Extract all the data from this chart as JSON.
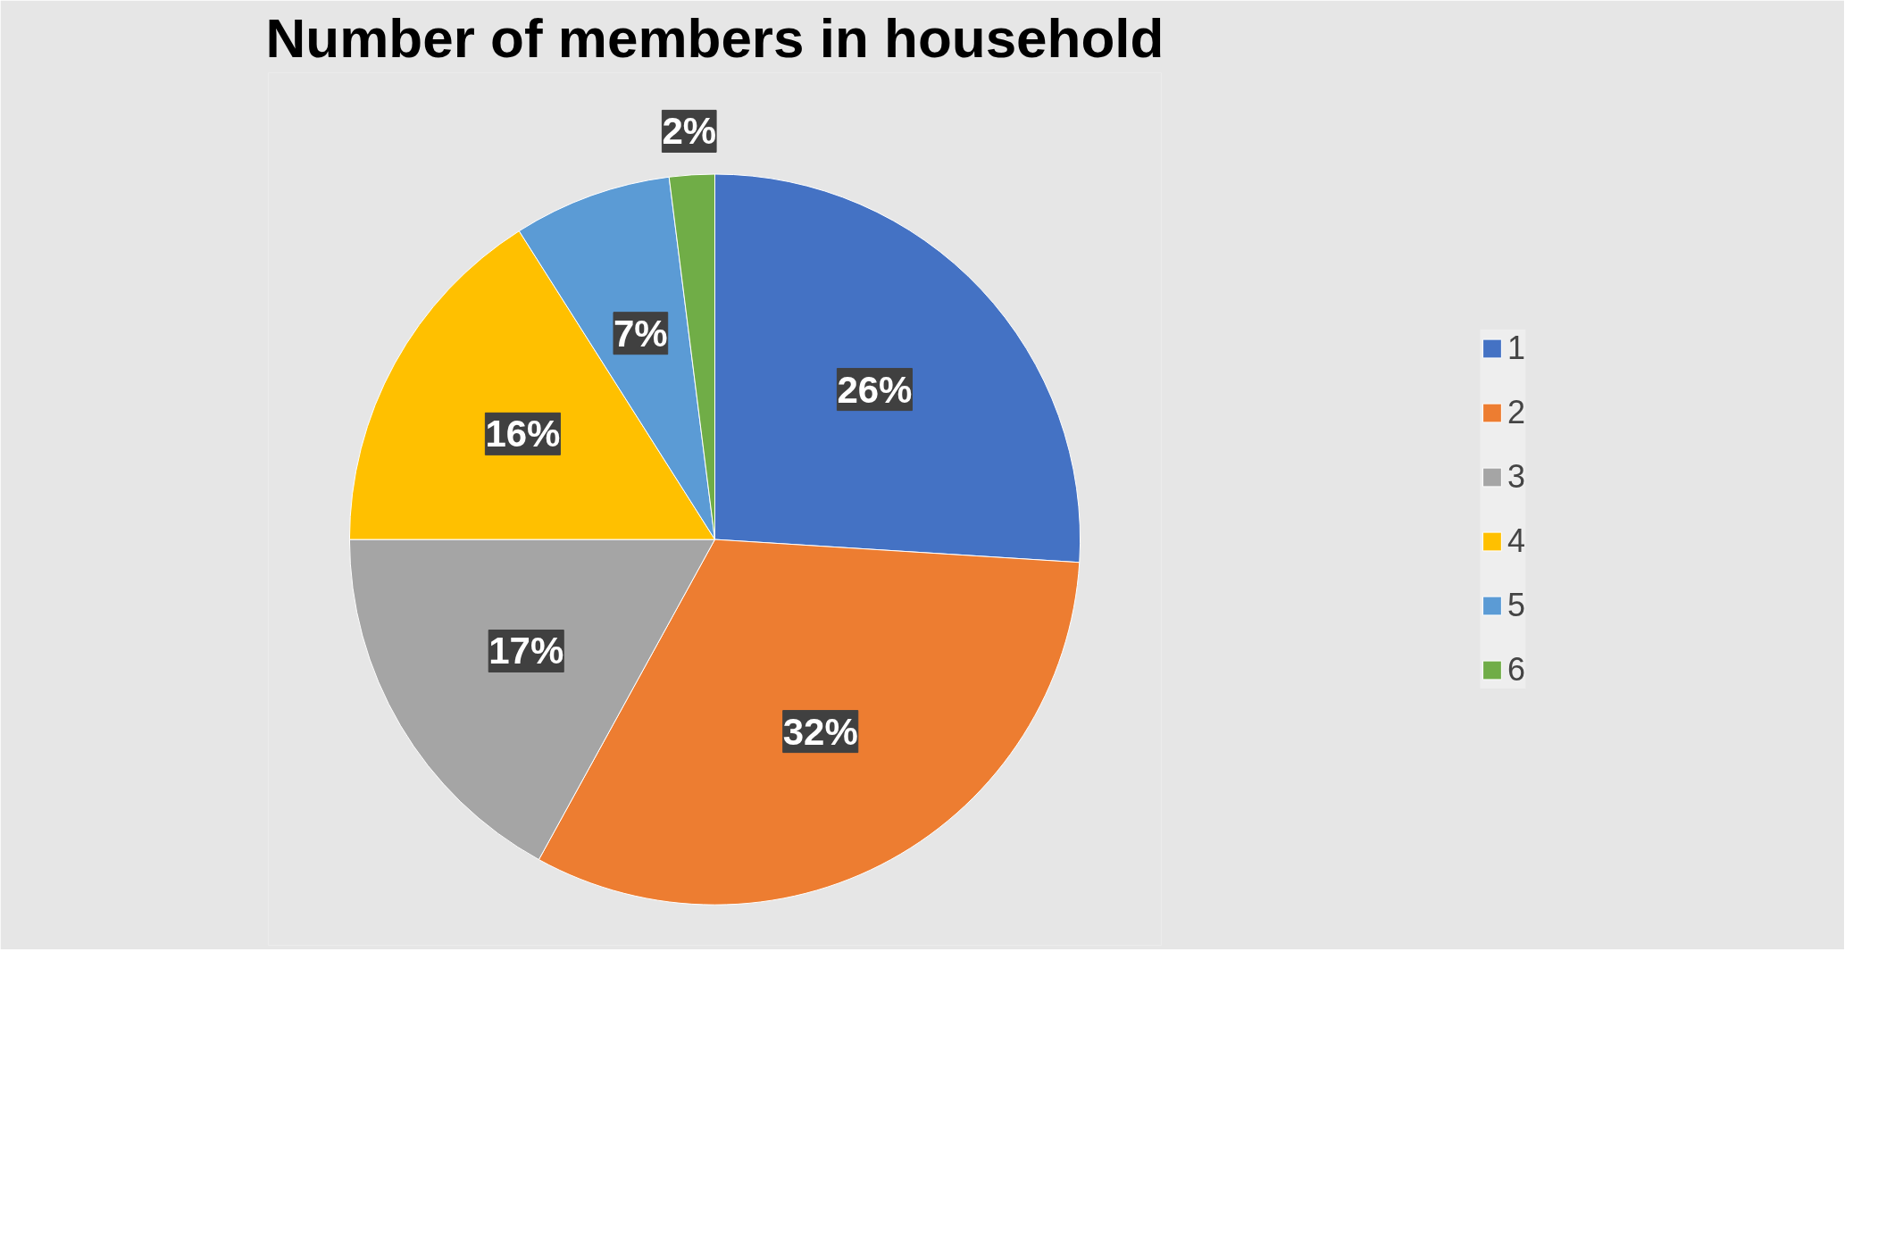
{
  "chart_data": {
    "type": "pie",
    "title": "Number of members in household",
    "categories": [
      "1",
      "2",
      "3",
      "4",
      "5",
      "6"
    ],
    "values": [
      26,
      32,
      17,
      16,
      7,
      2
    ],
    "colors": [
      "#4472c4",
      "#ed7d31",
      "#a5a5a5",
      "#ffc000",
      "#5b9bd5",
      "#70ad47"
    ],
    "value_labels": [
      "26%",
      "32%",
      "17%",
      "16%",
      "7%",
      "2%"
    ],
    "legend": "right"
  }
}
